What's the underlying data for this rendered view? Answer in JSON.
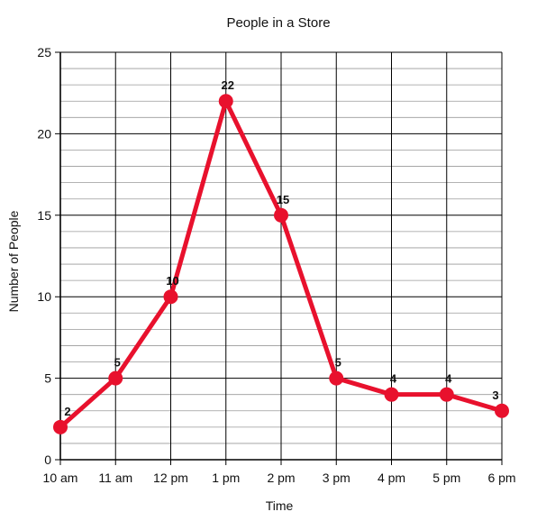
{
  "chart_data": {
    "type": "line",
    "title": "People in a Store",
    "xlabel": "Time",
    "ylabel": "Number of People",
    "categories": [
      "10 am",
      "11 am",
      "12 pm",
      "1 pm",
      "2 pm",
      "3 pm",
      "4 pm",
      "5 pm",
      "6 pm"
    ],
    "series": [
      {
        "values": [
          2,
          5,
          10,
          22,
          15,
          5,
          4,
          4,
          3
        ],
        "data_labels": [
          "2",
          "5",
          "10",
          "22",
          "15",
          "5",
          "4",
          "4",
          "3"
        ]
      }
    ],
    "ylim": [
      0,
      25
    ],
    "yticks": [
      0,
      5,
      10,
      15,
      20,
      25
    ],
    "ytick_labels": [
      "0",
      "5",
      "10",
      "15",
      "20",
      "25"
    ],
    "grid": {
      "major": true,
      "minor_y_step": 1
    },
    "line_color": "#e8112d",
    "grid_color": "#000000",
    "minor_grid_color": "#9a9a9a"
  }
}
